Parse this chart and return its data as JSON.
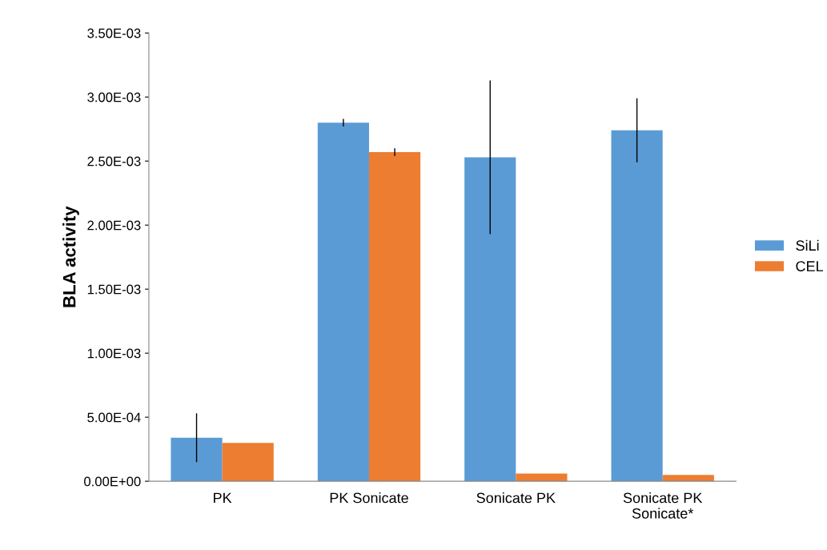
{
  "chart_data": {
    "type": "bar",
    "ylabel": "BLA activity",
    "categories": [
      "PK",
      "PK Sonicate",
      "Sonicate PK",
      "Sonicate PK\nSonicate*"
    ],
    "series": [
      {
        "name": "SiLi",
        "color": "#5b9bd5",
        "values": [
          0.00034,
          0.0028,
          0.00253,
          0.00274
        ],
        "errors": [
          0.00019,
          3e-05,
          0.0006,
          0.00025
        ]
      },
      {
        "name": "CEL",
        "color": "#ed7d31",
        "values": [
          0.0003,
          0.00257,
          6e-05,
          5e-05
        ],
        "errors": [
          null,
          3e-05,
          null,
          null
        ]
      }
    ],
    "ylim": [
      0,
      0.0035
    ],
    "yticks": [
      {
        "value": 0,
        "label": "0.00E+00"
      },
      {
        "value": 0.0005,
        "label": "5.00E-04"
      },
      {
        "value": 0.001,
        "label": "1.00E-03"
      },
      {
        "value": 0.0015,
        "label": "1.50E-03"
      },
      {
        "value": 0.002,
        "label": "2.00E-03"
      },
      {
        "value": 0.0025,
        "label": "2.50E-03"
      },
      {
        "value": 0.003,
        "label": "3.00E-03"
      },
      {
        "value": 0.0035,
        "label": "3.50E-03"
      }
    ],
    "grid": false,
    "legend": "right"
  }
}
